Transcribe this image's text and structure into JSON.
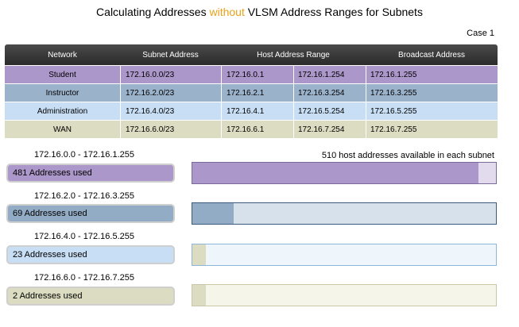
{
  "title": {
    "before": "Calculating Addresses ",
    "highlight": "without",
    "after": " VLSM Address Ranges for Subnets"
  },
  "case_label": "Case 1",
  "table": {
    "headers": [
      "Network",
      "Subnet Address",
      "Host Address Range",
      "Broadcast Address"
    ],
    "rows": [
      {
        "network": "Student",
        "subnet": "172.16.0.0/23",
        "host_start": "172.16.0.1",
        "host_end": "172.16.1.254",
        "broadcast": "172.16.1.255",
        "color": "#ab97c9"
      },
      {
        "network": "Instructor",
        "subnet": "172.16.2.0/23",
        "host_start": "172.16.2.1",
        "host_end": "172.16.3.254",
        "broadcast": "172.16.3.255",
        "color": "#9bb2cb"
      },
      {
        "network": "Administration",
        "subnet": "172.16.4.0/23",
        "host_start": "172.16.4.1",
        "host_end": "172.16.5.254",
        "broadcast": "172.16.5.255",
        "color": "#c8def4"
      },
      {
        "network": "WAN",
        "subnet": "172.16.6.0/23",
        "host_start": "172.16.6.1",
        "host_end": "172.16.7.254",
        "broadcast": "172.16.7.255",
        "color": "#dcdcc2"
      }
    ]
  },
  "available_note": "510 host addresses available in each subnet",
  "subnets": [
    {
      "range": "172.16.0.0  - 172.16.1.255",
      "used_label": "481 Addresses used",
      "used": 481,
      "total": 510,
      "box_color": "#ab97c9",
      "fill_color": "#ab97c9",
      "bar_bg": "#e2dbee",
      "bar_border": "#7a6a9a"
    },
    {
      "range": "172.16.2.0 - 172.16.3.255",
      "used_label": "69 Addresses used",
      "used": 69,
      "total": 510,
      "box_color": "#93acc6",
      "fill_color": "#93acc6",
      "bar_bg": "#d6e1ec",
      "bar_border": "#3e5a7a"
    },
    {
      "range": "172.16.4.0 - 172.16.5.255",
      "used_label": "23 Addresses used",
      "used": 23,
      "total": 510,
      "box_color": "#c8def4",
      "fill_color": "#dcdcc2",
      "bar_bg": "#eef5fb",
      "bar_border": "#8fb6d8"
    },
    {
      "range": "172.16.6.0 - 172.16.7.255",
      "used_label": "2 Addresses used",
      "used": 2,
      "total": 510,
      "box_color": "#dcdcc2",
      "fill_color": "#dcdcc2",
      "bar_bg": "#f5f5ea",
      "bar_border": "#c8c8a8"
    }
  ]
}
